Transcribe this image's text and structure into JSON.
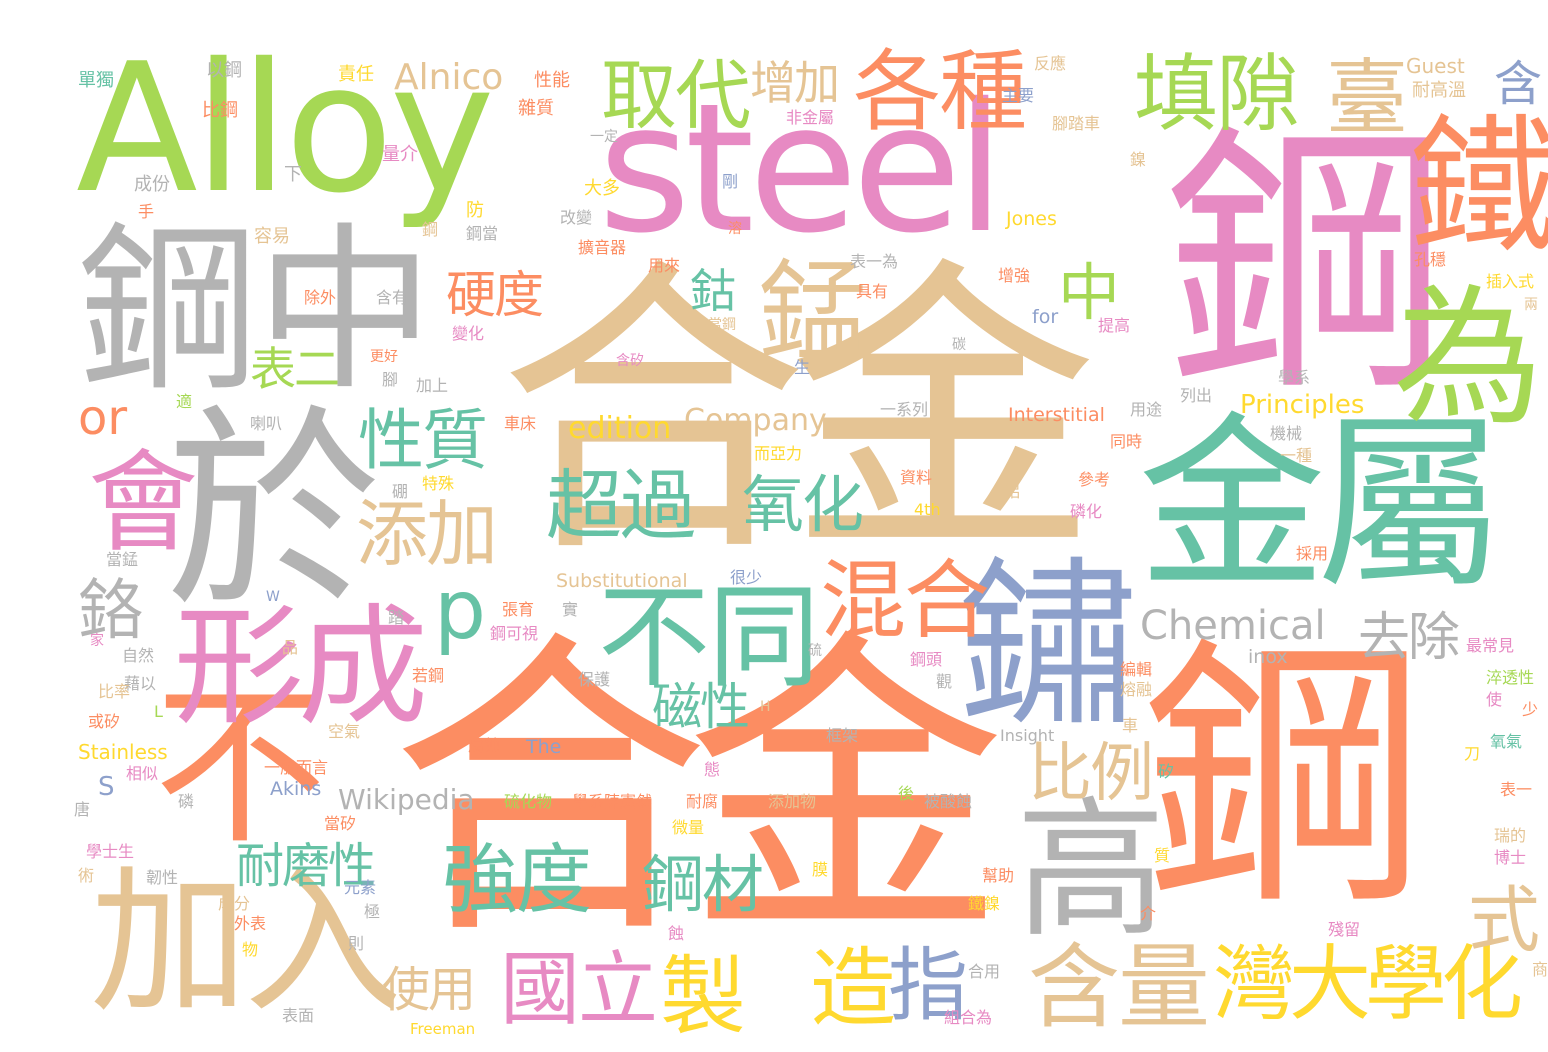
{
  "palette": {
    "salmon": "#fc8d62",
    "green": "#66c2a5",
    "pink": "#e78ac3",
    "lime": "#a6d854",
    "yellow": "#ffd92f",
    "tan": "#e5c494",
    "gray": "#b3b3b3",
    "blue": "#8da0cb"
  },
  "words": [
    {
      "t": "Alloy",
      "c": "lime"
    },
    {
      "t": "steel",
      "c": "pink"
    },
    {
      "t": "合金",
      "c": "tan"
    },
    {
      "t": "合金",
      "c": "salmon"
    },
    {
      "t": "鋼",
      "c": "pink"
    },
    {
      "t": "鋼",
      "c": "salmon"
    },
    {
      "t": "於",
      "c": "gray"
    },
    {
      "t": "鋼",
      "c": "gray"
    },
    {
      "t": "中",
      "c": "gray"
    },
    {
      "t": "金屬",
      "c": "green"
    },
    {
      "t": "鏽",
      "c": "blue"
    },
    {
      "t": "不",
      "c": "salmon"
    },
    {
      "t": "加入",
      "c": "tan"
    },
    {
      "t": "鐵",
      "c": "salmon"
    },
    {
      "t": "為",
      "c": "lime"
    },
    {
      "t": "高",
      "c": "gray"
    },
    {
      "t": "形成",
      "c": "pink"
    },
    {
      "t": "不同",
      "c": "green"
    },
    {
      "t": "會",
      "c": "pink"
    },
    {
      "t": "錳",
      "c": "tan"
    },
    {
      "t": "各種",
      "c": "salmon"
    },
    {
      "t": "取代",
      "c": "lime"
    },
    {
      "t": "填隙",
      "c": "lime"
    },
    {
      "t": "臺",
      "c": "tan"
    },
    {
      "t": "含量",
      "c": "tan"
    },
    {
      "t": "灣大學化",
      "c": "yellow"
    },
    {
      "t": "製",
      "c": "yellow"
    },
    {
      "t": "造",
      "c": "yellow"
    },
    {
      "t": "指",
      "c": "blue"
    },
    {
      "t": "國立",
      "c": "pink"
    },
    {
      "t": "混合",
      "c": "salmon"
    },
    {
      "t": "超過",
      "c": "green"
    },
    {
      "t": "強度",
      "c": "green"
    },
    {
      "t": "p",
      "c": "green"
    },
    {
      "t": "中",
      "c": "lime"
    },
    {
      "t": "性質",
      "c": "green"
    },
    {
      "t": "添加",
      "c": "tan"
    },
    {
      "t": "氧化",
      "c": "green"
    },
    {
      "t": "比例",
      "c": "tan"
    },
    {
      "t": "鋼材",
      "c": "green"
    },
    {
      "t": "式",
      "c": "tan"
    },
    {
      "t": "硬度",
      "c": "salmon"
    },
    {
      "t": "增加",
      "c": "tan"
    },
    {
      "t": "鈷",
      "c": "green"
    },
    {
      "t": "鉻",
      "c": "gray"
    },
    {
      "t": "or",
      "c": "salmon"
    },
    {
      "t": "表二",
      "c": "lime"
    },
    {
      "t": "磁性",
      "c": "green"
    },
    {
      "t": "耐磨性",
      "c": "green"
    },
    {
      "t": "使用",
      "c": "tan"
    },
    {
      "t": "去除",
      "c": "gray"
    },
    {
      "t": "Chemical",
      "c": "gray"
    },
    {
      "t": "Alnico",
      "c": "tan"
    },
    {
      "t": "含",
      "c": "blue"
    },
    {
      "t": "Guest",
      "c": "tan"
    },
    {
      "t": "耐高溫",
      "c": "tan"
    },
    {
      "t": "Company",
      "c": "tan"
    },
    {
      "t": "edition",
      "c": "yellow"
    },
    {
      "t": "Principles",
      "c": "yellow"
    },
    {
      "t": "Wikipedia",
      "c": "gray"
    },
    {
      "t": "Substitutional",
      "c": "tan"
    },
    {
      "t": "Interstitial",
      "c": "salmon"
    },
    {
      "t": "Stainless",
      "c": "yellow"
    },
    {
      "t": "Akins",
      "c": "blue"
    },
    {
      "t": "The",
      "c": "blue"
    },
    {
      "t": "Insight",
      "c": "gray"
    },
    {
      "t": "inox",
      "c": "gray"
    },
    {
      "t": "Jones",
      "c": "yellow"
    },
    {
      "t": "for",
      "c": "blue"
    },
    {
      "t": "4th",
      "c": "yellow"
    },
    {
      "t": "Freeman",
      "c": "yellow"
    },
    {
      "t": "S",
      "c": "blue"
    },
    {
      "t": "L",
      "c": "lime"
    },
    {
      "t": "H",
      "c": "tan"
    },
    {
      "t": "W",
      "c": "blue"
    },
    {
      "t": "單獨",
      "c": "green"
    },
    {
      "t": "以鋼",
      "c": "gray"
    },
    {
      "t": "比鋼",
      "c": "salmon"
    },
    {
      "t": "責任",
      "c": "yellow"
    },
    {
      "t": "性能",
      "c": "salmon"
    },
    {
      "t": "雜質",
      "c": "salmon"
    },
    {
      "t": "量介",
      "c": "pink"
    },
    {
      "t": "成份",
      "c": "gray"
    },
    {
      "t": "下",
      "c": "gray"
    },
    {
      "t": "手",
      "c": "salmon"
    },
    {
      "t": "容易",
      "c": "tan"
    },
    {
      "t": "防",
      "c": "yellow"
    },
    {
      "t": "鋼當",
      "c": "gray"
    },
    {
      "t": "鋼",
      "c": "tan"
    },
    {
      "t": "大多",
      "c": "yellow"
    },
    {
      "t": "改變",
      "c": "gray"
    },
    {
      "t": "擴音器",
      "c": "salmon"
    },
    {
      "t": "一定",
      "c": "gray"
    },
    {
      "t": "非金屬",
      "c": "pink"
    },
    {
      "t": "主要",
      "c": "blue"
    },
    {
      "t": "反應",
      "c": "tan"
    },
    {
      "t": "腳踏車",
      "c": "tan"
    },
    {
      "t": "鎳",
      "c": "tan"
    },
    {
      "t": "剛",
      "c": "blue"
    },
    {
      "t": "溶",
      "c": "salmon"
    },
    {
      "t": "用來",
      "c": "salmon"
    },
    {
      "t": "表一為",
      "c": "gray"
    },
    {
      "t": "具有",
      "c": "salmon"
    },
    {
      "t": "增強",
      "c": "salmon"
    },
    {
      "t": "孔穩",
      "c": "salmon"
    },
    {
      "t": "插入式",
      "c": "yellow"
    },
    {
      "t": "兩",
      "c": "tan"
    },
    {
      "t": "提高",
      "c": "pink"
    },
    {
      "t": "除外",
      "c": "salmon"
    },
    {
      "t": "含有",
      "c": "gray"
    },
    {
      "t": "變化",
      "c": "pink"
    },
    {
      "t": "更好",
      "c": "salmon"
    },
    {
      "t": "當鋼",
      "c": "tan"
    },
    {
      "t": "碳",
      "c": "gray"
    },
    {
      "t": "腳",
      "c": "gray"
    },
    {
      "t": "加上",
      "c": "gray"
    },
    {
      "t": "含矽",
      "c": "pink"
    },
    {
      "t": "生",
      "c": "blue"
    },
    {
      "t": "學系",
      "c": "gray"
    },
    {
      "t": "列出",
      "c": "gray"
    },
    {
      "t": "用途",
      "c": "gray"
    },
    {
      "t": "適",
      "c": "lime"
    },
    {
      "t": "喇叭",
      "c": "gray"
    },
    {
      "t": "車床",
      "c": "salmon"
    },
    {
      "t": "一系列",
      "c": "gray"
    },
    {
      "t": "機械",
      "c": "gray"
    },
    {
      "t": "同時",
      "c": "salmon"
    },
    {
      "t": "一種",
      "c": "tan"
    },
    {
      "t": "而亞力",
      "c": "yellow"
    },
    {
      "t": "資料",
      "c": "salmon"
    },
    {
      "t": "特殊",
      "c": "yellow"
    },
    {
      "t": "硼",
      "c": "gray"
    },
    {
      "t": "鋁",
      "c": "tan"
    },
    {
      "t": "參考",
      "c": "salmon"
    },
    {
      "t": "磷化",
      "c": "pink"
    },
    {
      "t": "當錳",
      "c": "gray"
    },
    {
      "t": "很少",
      "c": "blue"
    },
    {
      "t": "張育",
      "c": "salmon"
    },
    {
      "t": "踏",
      "c": "gray"
    },
    {
      "t": "實",
      "c": "gray"
    },
    {
      "t": "鋼可視",
      "c": "pink"
    },
    {
      "t": "採用",
      "c": "salmon"
    },
    {
      "t": "家",
      "c": "pink"
    },
    {
      "t": "自然",
      "c": "gray"
    },
    {
      "t": "品",
      "c": "tan"
    },
    {
      "t": "藉以",
      "c": "gray"
    },
    {
      "t": "若鋼",
      "c": "salmon"
    },
    {
      "t": "比率",
      "c": "tan"
    },
    {
      "t": "保護",
      "c": "gray"
    },
    {
      "t": "硫",
      "c": "gray"
    },
    {
      "t": "鋼頭",
      "c": "pink"
    },
    {
      "t": "最常見",
      "c": "pink"
    },
    {
      "t": "編輯",
      "c": "salmon"
    },
    {
      "t": "觀",
      "c": "gray"
    },
    {
      "t": "熔融",
      "c": "tan"
    },
    {
      "t": "淬透性",
      "c": "lime"
    },
    {
      "t": "使",
      "c": "pink"
    },
    {
      "t": "少",
      "c": "salmon"
    },
    {
      "t": "或矽",
      "c": "salmon"
    },
    {
      "t": "空氣",
      "c": "tan"
    },
    {
      "t": "框架",
      "c": "gray"
    },
    {
      "t": "車",
      "c": "tan"
    },
    {
      "t": "氧氣",
      "c": "green"
    },
    {
      "t": "刀",
      "c": "yellow"
    },
    {
      "t": "相似",
      "c": "pink"
    },
    {
      "t": "腐蝕",
      "c": "salmon"
    },
    {
      "t": "一般而言",
      "c": "salmon"
    },
    {
      "t": "態",
      "c": "pink"
    },
    {
      "t": "矽",
      "c": "green"
    },
    {
      "t": "表一",
      "c": "salmon"
    },
    {
      "t": "硫化物",
      "c": "lime"
    },
    {
      "t": "學系陳憲然",
      "c": "salmon"
    },
    {
      "t": "耐腐",
      "c": "salmon"
    },
    {
      "t": "添加物",
      "c": "tan"
    },
    {
      "t": "後",
      "c": "lime"
    },
    {
      "t": "被酸蝕",
      "c": "gray"
    },
    {
      "t": "唐",
      "c": "gray"
    },
    {
      "t": "磷",
      "c": "gray"
    },
    {
      "t": "當矽",
      "c": "salmon"
    },
    {
      "t": "微量",
      "c": "yellow"
    },
    {
      "t": "瑞的",
      "c": "tan"
    },
    {
      "t": "學士生",
      "c": "pink"
    },
    {
      "t": "質",
      "c": "yellow"
    },
    {
      "t": "博士",
      "c": "pink"
    },
    {
      "t": "術",
      "c": "tan"
    },
    {
      "t": "韌性",
      "c": "gray"
    },
    {
      "t": "元素",
      "c": "blue"
    },
    {
      "t": "膜",
      "c": "yellow"
    },
    {
      "t": "幫助",
      "c": "salmon"
    },
    {
      "t": "鐵鎳",
      "c": "yellow"
    },
    {
      "t": "成分",
      "c": "tan"
    },
    {
      "t": "外表",
      "c": "salmon"
    },
    {
      "t": "極",
      "c": "gray"
    },
    {
      "t": "介",
      "c": "salmon"
    },
    {
      "t": "殘留",
      "c": "pink"
    },
    {
      "t": "蝕",
      "c": "pink"
    },
    {
      "t": "物",
      "c": "yellow"
    },
    {
      "t": "則",
      "c": "gray"
    },
    {
      "t": "合用",
      "c": "gray"
    },
    {
      "t": "商",
      "c": "tan"
    },
    {
      "t": "表面",
      "c": "gray"
    },
    {
      "t": "組合為",
      "c": "pink"
    }
  ]
}
